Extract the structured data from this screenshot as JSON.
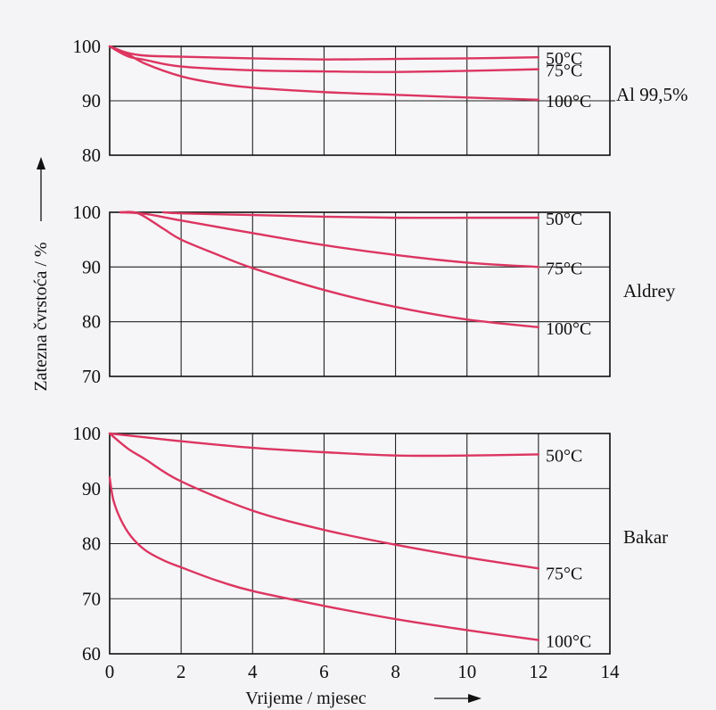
{
  "chart_data": [
    {
      "type": "line",
      "side_label": "Al 99,5%",
      "xlim": [
        0,
        14
      ],
      "ylim": [
        80,
        100
      ],
      "xticks": [
        0,
        2,
        4,
        6,
        8,
        10,
        12,
        14
      ],
      "yticks": [
        80,
        90,
        100
      ],
      "grid": true,
      "series": [
        {
          "name": "50°C",
          "x": [
            0,
            0.5,
            1,
            2,
            4,
            6,
            8,
            10,
            12
          ],
          "y": [
            100,
            98.8,
            98.3,
            98.1,
            97.8,
            97.6,
            97.7,
            97.8,
            98.0
          ]
        },
        {
          "name": "75°C",
          "x": [
            0,
            0.5,
            1,
            2,
            4,
            6,
            8,
            10,
            12
          ],
          "y": [
            100,
            98.2,
            97.5,
            96.3,
            95.6,
            95.4,
            95.3,
            95.5,
            95.8
          ]
        },
        {
          "name": "100°C",
          "x": [
            0,
            0.5,
            1,
            2,
            3,
            4,
            6,
            8,
            10,
            12
          ],
          "y": [
            100,
            98.6,
            96.8,
            94.5,
            93.2,
            92.4,
            91.6,
            91.1,
            90.6,
            90.2
          ]
        }
      ]
    },
    {
      "type": "line",
      "side_label": "Aldrey",
      "xlim": [
        0,
        14
      ],
      "ylim": [
        70,
        100
      ],
      "xticks": [
        0,
        2,
        4,
        6,
        8,
        10,
        12,
        14
      ],
      "yticks": [
        70,
        80,
        90,
        100
      ],
      "grid": true,
      "series": [
        {
          "name": "50°C",
          "x": [
            1.5,
            2,
            4,
            6,
            8,
            10,
            12
          ],
          "y": [
            100,
            99.8,
            99.5,
            99.2,
            99.0,
            99.0,
            99.0
          ]
        },
        {
          "name": "75°C",
          "x": [
            0.3,
            1,
            2,
            4,
            6,
            8,
            10,
            12
          ],
          "y": [
            100,
            99.7,
            98.5,
            96.2,
            94.0,
            92.2,
            90.8,
            90.0
          ]
        },
        {
          "name": "100°C",
          "x": [
            0.3,
            0.8,
            1.5,
            2,
            3,
            4,
            6,
            8,
            10,
            12
          ],
          "y": [
            100,
            99.8,
            97.0,
            95.0,
            92.3,
            89.8,
            85.8,
            82.7,
            80.4,
            79.0
          ]
        }
      ]
    },
    {
      "type": "line",
      "side_label": "Bakar",
      "xlim": [
        0,
        14
      ],
      "ylim": [
        60,
        100
      ],
      "xticks": [
        0,
        2,
        4,
        6,
        8,
        10,
        12,
        14
      ],
      "yticks": [
        60,
        70,
        80,
        90,
        100
      ],
      "grid": true,
      "series": [
        {
          "name": "50°C",
          "x": [
            0,
            1,
            2,
            4,
            6,
            8,
            10,
            12
          ],
          "y": [
            100,
            99.3,
            98.6,
            97.4,
            96.6,
            96.0,
            96.0,
            96.2
          ]
        },
        {
          "name": "75°C",
          "x": [
            0,
            0.5,
            1,
            2,
            4,
            6,
            8,
            10,
            12
          ],
          "y": [
            100,
            97.3,
            95.3,
            91.3,
            86.0,
            82.5,
            79.8,
            77.5,
            75.5
          ]
        },
        {
          "name": "100°C",
          "x": [
            0,
            0.1,
            0.3,
            0.6,
            1,
            1.5,
            2,
            3,
            4,
            6,
            8,
            10,
            12
          ],
          "y": [
            92,
            88,
            84.5,
            81.3,
            78.8,
            77.0,
            75.7,
            73.3,
            71.4,
            68.7,
            66.3,
            64.3,
            62.5
          ]
        }
      ]
    }
  ],
  "ylabel": "Zatezna čvrstoća / %",
  "xlabel": "Vrijeme / mjesec",
  "colors": {
    "curve": "#dc3560",
    "grid": "#222222",
    "axis": "#111111"
  }
}
